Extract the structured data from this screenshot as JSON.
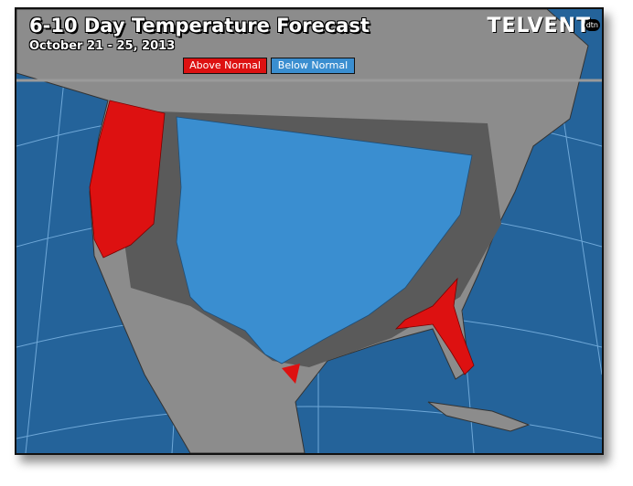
{
  "header": {
    "title": "6-10 Day Temperature Forecast",
    "subtitle": "October 21 - 25, 2013",
    "logo": "TELVENT",
    "logo_badge": "dtn"
  },
  "legend": {
    "above": "Above Normal",
    "below": "Below Normal"
  }
}
